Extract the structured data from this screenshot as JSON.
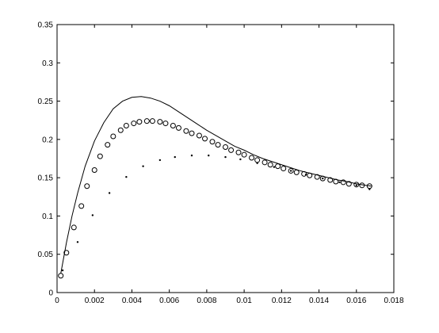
{
  "chart_data": {
    "type": "line",
    "title": "",
    "xlabel": "",
    "ylabel": "",
    "xlim": [
      0,
      0.018
    ],
    "ylim": [
      0,
      0.35
    ],
    "grid": false,
    "x_ticks": [
      0,
      0.002,
      0.004,
      0.006,
      0.008,
      0.01,
      0.012,
      0.014,
      0.016,
      0.018
    ],
    "x_tick_labels": [
      "0",
      "0.002",
      "0.004",
      "0.006",
      "0.008",
      "0.01",
      "0.012",
      "0.014",
      "0.016",
      "0.018"
    ],
    "y_ticks": [
      0,
      0.05,
      0.1,
      0.15,
      0.2,
      0.25,
      0.3,
      0.35
    ],
    "y_tick_labels": [
      "0",
      "0.05",
      "0.1",
      "0.15",
      "0.2",
      "0.25",
      "0.3",
      "0.35"
    ],
    "series": [
      {
        "style": "solid-line",
        "color": "#000000",
        "x": [
          0.0002,
          0.0005,
          0.0008,
          0.0011,
          0.0015,
          0.002,
          0.0025,
          0.003,
          0.0035,
          0.004,
          0.0045,
          0.005,
          0.0055,
          0.006,
          0.0065,
          0.007,
          0.0075,
          0.008,
          0.0085,
          0.009,
          0.0095,
          0.01,
          0.0105,
          0.011,
          0.0115,
          0.012,
          0.0125,
          0.013,
          0.0135,
          0.014,
          0.0145,
          0.015,
          0.0155,
          0.016,
          0.0165,
          0.0168
        ],
        "y": [
          0.025,
          0.065,
          0.1,
          0.13,
          0.165,
          0.198,
          0.222,
          0.24,
          0.25,
          0.255,
          0.256,
          0.254,
          0.25,
          0.244,
          0.236,
          0.228,
          0.22,
          0.212,
          0.205,
          0.198,
          0.191,
          0.186,
          0.18,
          0.175,
          0.171,
          0.167,
          0.163,
          0.159,
          0.156,
          0.153,
          0.15,
          0.147,
          0.145,
          0.142,
          0.14,
          0.139
        ]
      },
      {
        "style": "circle-markers",
        "color": "#000000",
        "x": [
          0.0002,
          0.0005,
          0.0009,
          0.0013,
          0.0016,
          0.002,
          0.0023,
          0.0027,
          0.003,
          0.0034,
          0.0037,
          0.0041,
          0.0044,
          0.0048,
          0.0051,
          0.0055,
          0.0058,
          0.0062,
          0.0065,
          0.0069,
          0.0072,
          0.0076,
          0.0079,
          0.0083,
          0.0086,
          0.009,
          0.0093,
          0.0097,
          0.01,
          0.0104,
          0.0107,
          0.0111,
          0.0114,
          0.0118,
          0.0121,
          0.0125,
          0.0128,
          0.0132,
          0.0135,
          0.0139,
          0.0142,
          0.0146,
          0.0149,
          0.0153,
          0.0156,
          0.016,
          0.0163,
          0.0167
        ],
        "y": [
          0.022,
          0.052,
          0.085,
          0.113,
          0.139,
          0.16,
          0.178,
          0.193,
          0.204,
          0.212,
          0.218,
          0.221,
          0.223,
          0.224,
          0.224,
          0.223,
          0.221,
          0.218,
          0.215,
          0.211,
          0.208,
          0.205,
          0.201,
          0.197,
          0.193,
          0.19,
          0.186,
          0.183,
          0.18,
          0.176,
          0.173,
          0.17,
          0.167,
          0.165,
          0.162,
          0.159,
          0.157,
          0.155,
          0.153,
          0.151,
          0.149,
          0.147,
          0.145,
          0.144,
          0.142,
          0.141,
          0.14,
          0.139
        ]
      },
      {
        "style": "dot-markers",
        "color": "#000000",
        "x": [
          0.0003,
          0.0011,
          0.0019,
          0.0028,
          0.0037,
          0.0046,
          0.0055,
          0.0063,
          0.0072,
          0.0081,
          0.009,
          0.0098,
          0.0107,
          0.0116,
          0.0125,
          0.0133,
          0.0142,
          0.0151,
          0.016,
          0.0167
        ],
        "y": [
          0.029,
          0.066,
          0.101,
          0.13,
          0.151,
          0.165,
          0.173,
          0.177,
          0.179,
          0.179,
          0.177,
          0.174,
          0.169,
          0.164,
          0.159,
          0.154,
          0.149,
          0.144,
          0.14,
          0.135
        ]
      }
    ]
  }
}
